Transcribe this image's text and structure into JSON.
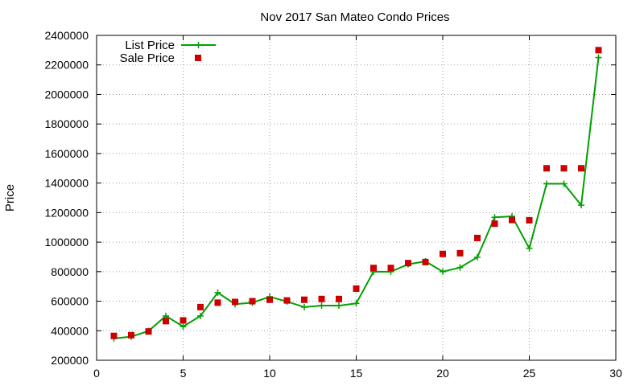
{
  "chart_data": {
    "type": "line",
    "title": "Nov 2017 San Mateo Condo Prices",
    "xlabel": "",
    "ylabel": "Price",
    "xlim": [
      0,
      30
    ],
    "ylim": [
      200000,
      2400000
    ],
    "xticks": [
      0,
      5,
      10,
      15,
      20,
      25,
      30
    ],
    "yticks": [
      200000,
      400000,
      600000,
      800000,
      1000000,
      1200000,
      1400000,
      1600000,
      1800000,
      2000000,
      2200000,
      2400000
    ],
    "xtick_labels": [
      "0",
      "5",
      "10",
      "15",
      "20",
      "25",
      "30"
    ],
    "ytick_labels": [
      "200000",
      "400000",
      "600000",
      "800000",
      "1000000",
      "1200000",
      "1400000",
      "1600000",
      "1800000",
      "2000000",
      "2200000",
      "2400000"
    ],
    "grid": true,
    "legend_position": "top-left",
    "x": [
      1,
      2,
      3,
      4,
      5,
      6,
      7,
      8,
      9,
      10,
      11,
      12,
      13,
      14,
      15,
      16,
      17,
      18,
      19,
      20,
      21,
      22,
      23,
      24,
      25,
      26,
      27,
      28,
      29
    ],
    "series": [
      {
        "name": "List Price",
        "style": "line+plus-markers",
        "color": "#00a000",
        "values": [
          348000,
          360000,
          398000,
          500000,
          428000,
          500000,
          658000,
          580000,
          590000,
          630000,
          598000,
          560000,
          570000,
          570000,
          585000,
          800000,
          800000,
          850000,
          870000,
          800000,
          828000,
          898000,
          1168000,
          1175000,
          958000,
          1395000,
          1395000,
          1250000,
          2250000
        ]
      },
      {
        "name": "Sale Price",
        "style": "square-markers",
        "color": "#cc0000",
        "values": [
          365000,
          370000,
          395000,
          465000,
          470000,
          560000,
          590000,
          595000,
          600000,
          610000,
          605000,
          610000,
          615000,
          615000,
          685000,
          825000,
          825000,
          858000,
          865000,
          920000,
          925000,
          1028000,
          1125000,
          1150000,
          1148000,
          1500000,
          1500000,
          1500000,
          2300000
        ]
      }
    ]
  }
}
